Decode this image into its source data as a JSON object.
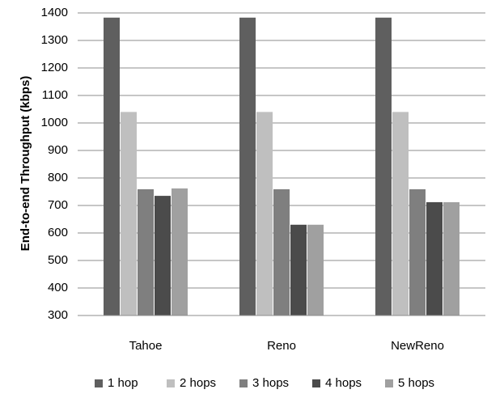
{
  "chart_data": {
    "type": "bar",
    "title": "",
    "xlabel": "",
    "ylabel": "End-to-end Throughput (kbps)",
    "categories": [
      "Tahoe",
      "Reno",
      "NewReno"
    ],
    "ylim": [
      300,
      1400
    ],
    "yticks": [
      300,
      400,
      500,
      600,
      700,
      800,
      900,
      1000,
      1100,
      1200,
      1300,
      1400
    ],
    "grid": true,
    "legend_position": "bottom",
    "series": [
      {
        "name": "1  hop",
        "color": "#5f5f5f",
        "values": [
          1383,
          1383,
          1383
        ]
      },
      {
        "name": "2 hops",
        "color": "#bfbfbf",
        "values": [
          1040,
          1040,
          1040
        ]
      },
      {
        "name": "3 hops",
        "color": "#7f7f7f",
        "values": [
          759,
          759,
          759
        ]
      },
      {
        "name": "4 hops",
        "color": "#4b4b4b",
        "values": [
          735,
          630,
          712
        ]
      },
      {
        "name": "5 hops",
        "color": "#a0a0a0",
        "values": [
          762,
          630,
          712
        ]
      }
    ]
  }
}
